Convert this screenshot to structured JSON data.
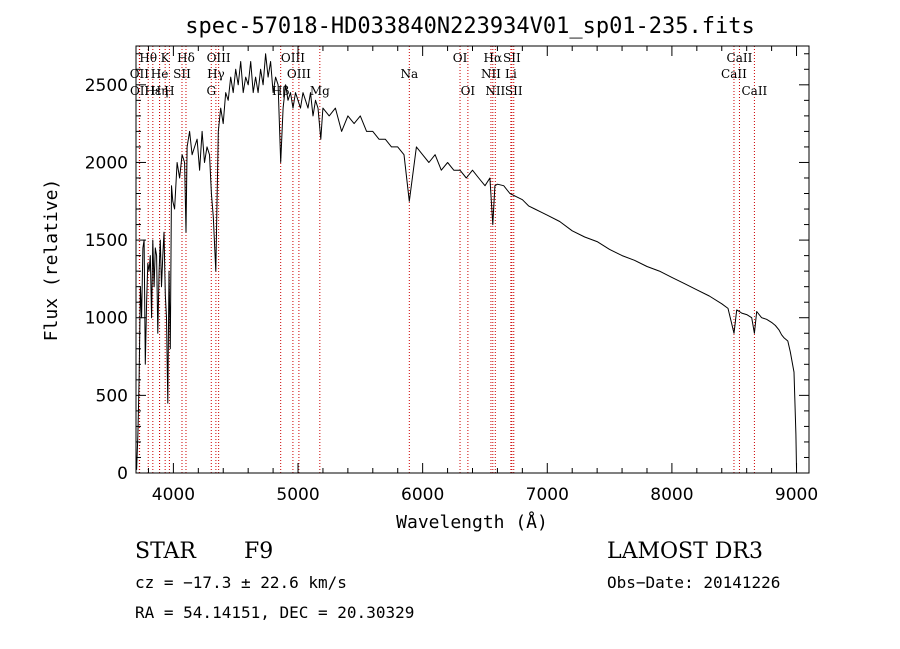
{
  "chart_data": {
    "type": "line",
    "title": "spec-57018-HD033840N223934V01_sp01-235.fits",
    "xlabel": "Wavelength (Å)",
    "ylabel": "Flux (relative)",
    "xlim": [
      3700,
      9100
    ],
    "ylim": [
      0,
      2750
    ],
    "xticks": [
      4000,
      5000,
      6000,
      7000,
      8000,
      9000
    ],
    "xtick_labels": [
      "4000",
      "5000",
      "6000",
      "7000",
      "8000",
      "9000"
    ],
    "yticks": [
      0,
      500,
      1000,
      1500,
      2000,
      2500
    ],
    "ytick_labels": [
      "0",
      "500",
      "1000",
      "1500",
      "2000",
      "2500"
    ],
    "grid": false,
    "series": [
      {
        "name": "flux",
        "x": [
          3705,
          3715,
          3725,
          3735,
          3745,
          3755,
          3765,
          3775,
          3785,
          3795,
          3805,
          3815,
          3825,
          3835,
          3845,
          3855,
          3865,
          3875,
          3885,
          3895,
          3905,
          3915,
          3925,
          3935,
          3945,
          3955,
          3965,
          3975,
          3985,
          3995,
          4010,
          4030,
          4050,
          4070,
          4090,
          4101,
          4110,
          4130,
          4150,
          4170,
          4190,
          4210,
          4230,
          4250,
          4270,
          4290,
          4305,
          4320,
          4340,
          4360,
          4380,
          4400,
          4420,
          4440,
          4460,
          4480,
          4500,
          4520,
          4540,
          4560,
          4580,
          4600,
          4620,
          4640,
          4660,
          4680,
          4700,
          4720,
          4740,
          4760,
          4780,
          4800,
          4820,
          4840,
          4861,
          4880,
          4900,
          4920,
          4940,
          4960,
          4980,
          5000,
          5020,
          5040,
          5060,
          5080,
          5100,
          5120,
          5140,
          5160,
          5183,
          5200,
          5250,
          5300,
          5350,
          5400,
          5450,
          5500,
          5550,
          5600,
          5650,
          5700,
          5750,
          5800,
          5850,
          5893,
          5950,
          6000,
          6050,
          6100,
          6150,
          6200,
          6250,
          6300,
          6350,
          6400,
          6450,
          6500,
          6540,
          6563,
          6580,
          6600,
          6650,
          6700,
          6750,
          6800,
          6850,
          6900,
          6950,
          7000,
          7100,
          7200,
          7300,
          7400,
          7500,
          7600,
          7700,
          7800,
          7900,
          8000,
          8100,
          8200,
          8300,
          8400,
          8450,
          8498,
          8520,
          8542,
          8560,
          8600,
          8640,
          8662,
          8680,
          8720,
          8760,
          8800,
          8830,
          8860,
          8880,
          8900,
          8930,
          8950,
          8980,
          8995,
          9000
        ],
        "values": [
          20,
          250,
          600,
          1200,
          1000,
          1450,
          1500,
          700,
          1100,
          1350,
          1300,
          1400,
          1000,
          1500,
          1200,
          1450,
          1400,
          900,
          1300,
          1500,
          1200,
          1400,
          1550,
          1150,
          1000,
          450,
          1300,
          800,
          1850,
          1750,
          1700,
          2000,
          1900,
          2050,
          2000,
          1550,
          2100,
          2200,
          2050,
          2100,
          2150,
          1950,
          2200,
          2000,
          2100,
          2050,
          1800,
          1650,
          1300,
          2200,
          2350,
          2250,
          2450,
          2400,
          2550,
          2450,
          2600,
          2500,
          2650,
          2450,
          2550,
          2500,
          2650,
          2450,
          2550,
          2450,
          2600,
          2500,
          2700,
          2550,
          2650,
          2450,
          2550,
          2500,
          2000,
          2350,
          2500,
          2400,
          2450,
          2350,
          2450,
          2400,
          2350,
          2450,
          2400,
          2350,
          2450,
          2300,
          2400,
          2350,
          2150,
          2350,
          2300,
          2350,
          2200,
          2300,
          2250,
          2300,
          2200,
          2200,
          2150,
          2150,
          2100,
          2100,
          2050,
          1750,
          2100,
          2050,
          2000,
          2050,
          1950,
          2000,
          1950,
          1950,
          1900,
          1950,
          1900,
          1850,
          1900,
          1600,
          1850,
          1860,
          1850,
          1800,
          1780,
          1760,
          1720,
          1700,
          1680,
          1660,
          1620,
          1560,
          1520,
          1490,
          1440,
          1400,
          1370,
          1330,
          1300,
          1260,
          1220,
          1180,
          1140,
          1090,
          1060,
          900,
          1050,
          1040,
          1030,
          1020,
          1000,
          900,
          1040,
          1000,
          990,
          970,
          950,
          920,
          890,
          870,
          850,
          780,
          650,
          250,
          30
        ]
      }
    ],
    "lines": [
      {
        "name": "Hθ",
        "x": 3798,
        "row": 1
      },
      {
        "name": "OII",
        "x": 3727,
        "row": 2
      },
      {
        "name": "OII",
        "x": 3729,
        "row": 3
      },
      {
        "name": "Hε",
        "x": 3835,
        "row": 3
      },
      {
        "name": "Hη",
        "x": 3889,
        "row": 3
      },
      {
        "name": "He",
        "x": 3889,
        "row": 2
      },
      {
        "name": "SII",
        "x": 4069,
        "row": 2
      },
      {
        "name": "K",
        "x": 3934,
        "row": 1
      },
      {
        "name": "H",
        "x": 3968,
        "row": 3
      },
      {
        "name": "Hδ",
        "x": 4101,
        "row": 1
      },
      {
        "name": "OIII",
        "x": 4363,
        "row": 1
      },
      {
        "name": "Hγ",
        "x": 4341,
        "row": 2
      },
      {
        "name": "G",
        "x": 4304,
        "row": 3
      },
      {
        "name": "OIII",
        "x": 4959,
        "row": 1
      },
      {
        "name": "OIII",
        "x": 5007,
        "row": 2
      },
      {
        "name": "Hβ",
        "x": 4861,
        "row": 3
      },
      {
        "name": "Mg",
        "x": 5175,
        "row": 3
      },
      {
        "name": "Na",
        "x": 5893,
        "row": 2
      },
      {
        "name": "OI",
        "x": 6300,
        "row": 1
      },
      {
        "name": "OI",
        "x": 6363,
        "row": 3
      },
      {
        "name": "Hα",
        "x": 6563,
        "row": 1
      },
      {
        "name": "NII",
        "x": 6548,
        "row": 2
      },
      {
        "name": "NII",
        "x": 6583,
        "row": 3
      },
      {
        "name": "SII",
        "x": 6716,
        "row": 1
      },
      {
        "name": "Li",
        "x": 6708,
        "row": 2
      },
      {
        "name": "SII",
        "x": 6731,
        "row": 3
      },
      {
        "name": "CaII",
        "x": 8498,
        "row": 2
      },
      {
        "name": "CaII",
        "x": 8542,
        "row": 1
      },
      {
        "name": "CaII",
        "x": 8662,
        "row": 3
      }
    ]
  },
  "info": {
    "object_class": "STAR",
    "subclass": "F9",
    "survey": "LAMOST DR3",
    "redshift_line": "cz = −17.3 ± 22.6 km/s",
    "obs_date_line": "Obs−Date: 20141226",
    "coords_line": "RA =  54.14151, DEC =  20.30329"
  },
  "colors": {
    "axes": "#000000",
    "spectrum": "#000000",
    "line_marker": "#cc0000"
  }
}
